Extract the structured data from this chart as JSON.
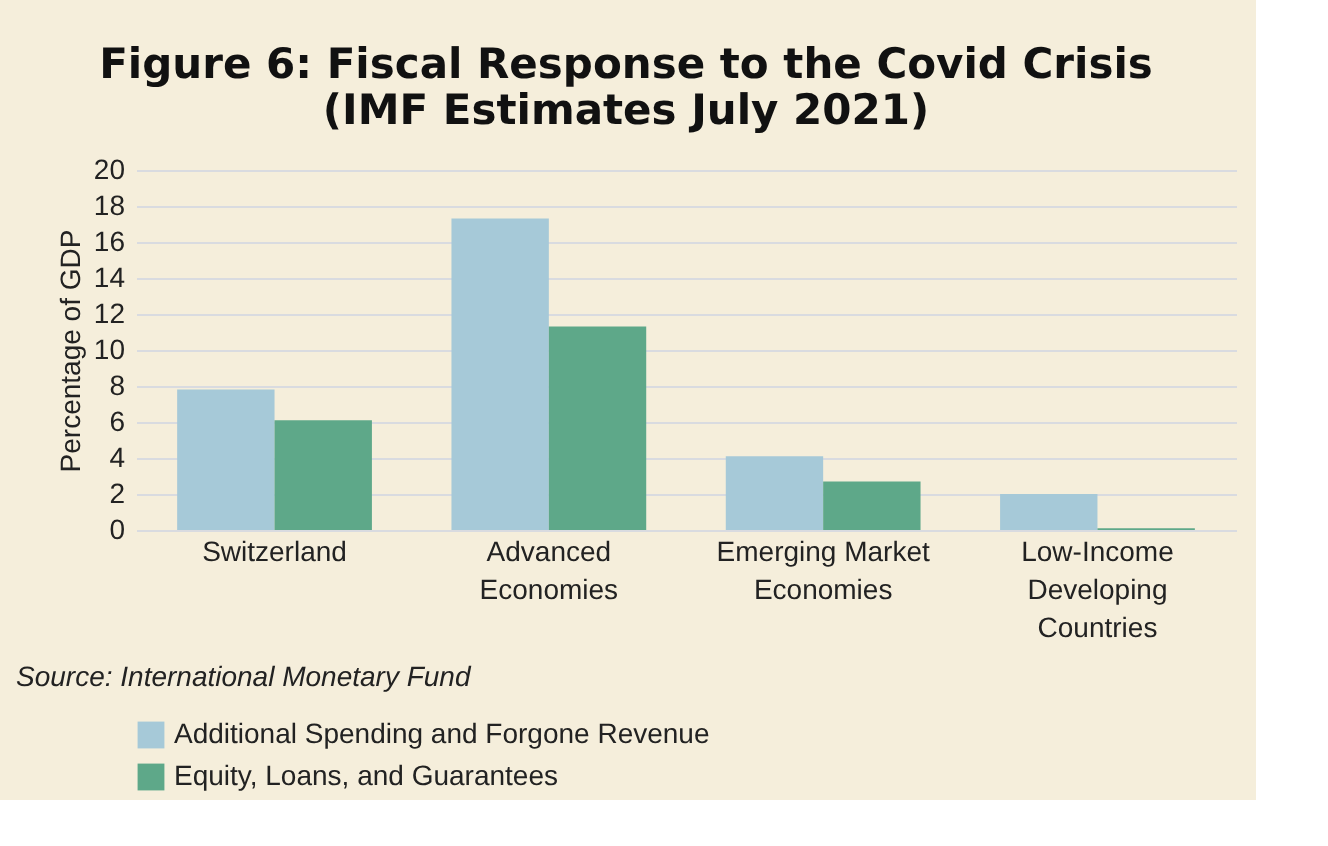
{
  "chart_data": {
    "type": "bar",
    "title": [
      "Figure 6: Fiscal Response to the Covid Crisis",
      "(IMF Estimates July 2021)"
    ],
    "ylabel": "Percentage of GDP",
    "categories": [
      "Switzerland",
      "Advanced\nEconomies",
      "Emerging Market\nEconomies",
      "Low-Income\nDeveloping\nCountries"
    ],
    "series": [
      {
        "name": "Additional Spending and Forgone Revenue",
        "color": "#a6c9d8",
        "values": [
          7.8,
          17.3,
          4.1,
          2.0
        ]
      },
      {
        "name": "Equity, Loans, and Guarantees",
        "color": "#5ea889",
        "values": [
          6.1,
          11.3,
          2.7,
          0.1
        ]
      }
    ],
    "ylim": [
      0,
      20
    ],
    "yticks": [
      0,
      2,
      4,
      6,
      8,
      10,
      12,
      14,
      16,
      18,
      20
    ],
    "grid": "y",
    "legend": "bottom left",
    "annotations": [
      "Source: International Monetary Fund"
    ]
  }
}
